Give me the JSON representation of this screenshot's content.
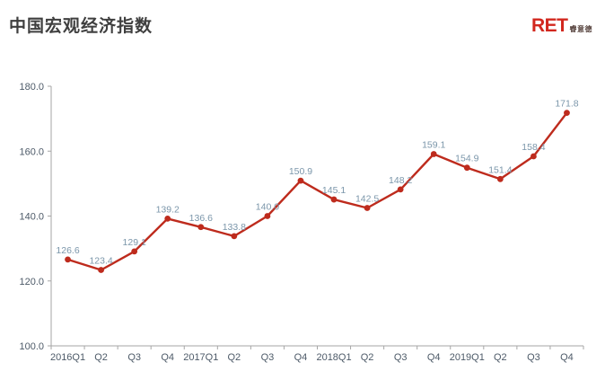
{
  "header": {
    "title": "中国宏观经济指数",
    "logo": {
      "main": "RET",
      "sub": "睿意德"
    }
  },
  "chart_data": {
    "type": "line",
    "title": "中国宏观经济指数",
    "categories": [
      "2016Q1",
      "Q2",
      "Q3",
      "Q4",
      "2017Q1",
      "Q2",
      "Q3",
      "Q4",
      "2018Q1",
      "Q2",
      "Q3",
      "Q4",
      "2019Q1",
      "Q2",
      "Q3",
      "Q4"
    ],
    "series": [
      {
        "name": "中国宏观经济指数",
        "values": [
          126.6,
          123.4,
          129.1,
          139.2,
          136.6,
          133.8,
          140.0,
          150.9,
          145.1,
          142.5,
          148.2,
          159.1,
          154.9,
          151.4,
          158.4,
          171.8
        ]
      }
    ],
    "xlabel": "",
    "ylabel": "",
    "ylim": [
      100.0,
      180.0
    ],
    "y_tick_labels": [
      "100.0",
      "120.0",
      "140.0",
      "160.0",
      "180.0"
    ],
    "grid": false,
    "legend": "none",
    "colors": {
      "line": "#be2b1d",
      "marker": "#be2b1d",
      "axis": "#a6a6a6",
      "axis_label": "#4d5a68",
      "data_label": "#7b96aa",
      "title": "#3f3f3f",
      "logo_red": "#d2271e"
    }
  }
}
